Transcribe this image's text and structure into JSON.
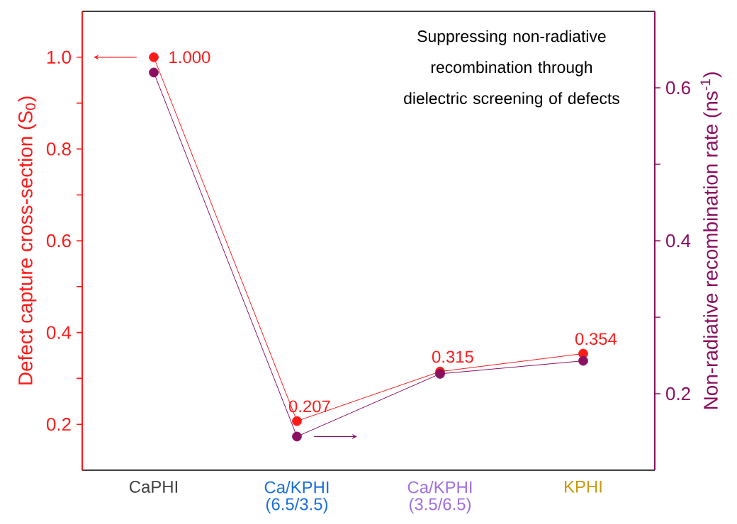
{
  "chart_data": {
    "type": "line",
    "categories": [
      "CaPHI",
      "Ca/KPHI (6.5/3.5)",
      "Ca/KPHI (3.5/6.5)",
      "KPHI"
    ],
    "ylabel": "Defect capture cross-section (S$_{0}$)",
    "y2label": "Non-radiative recombination rate (ns$^{-1}$)",
    "ylim": [
      0.1,
      1.1
    ],
    "yticks": [
      0.2,
      {
        "value": 0.3,
        "label": null
      },
      0.4,
      {
        "value": 0.5,
        "label": null
      },
      0.6,
      {
        "value": 0.7,
        "label": null
      },
      0.8,
      {
        "value": 0.9,
        "label": null
      },
      {
        "value": 1.0,
        "label": "1.0"
      }
    ],
    "y2lim": [
      0.1,
      0.7
    ],
    "y2ticks": [
      0.2,
      {
        "value": 0.3,
        "label": null
      },
      0.4,
      {
        "value": 0.5,
        "label": null
      },
      0.6
    ],
    "marker": "circle",
    "series": [
      {
        "color": "#ff1a1a",
        "values": [
          1.0,
          0.207,
          0.315,
          0.354
        ],
        "value_labels": [
          "1.000",
          "0.207",
          "0.315",
          "0.354"
        ]
      },
      {
        "color": "#8b1060",
        "axis": "y2",
        "values": [
          0.62,
          0.144,
          0.226,
          0.243
        ]
      }
    ],
    "annotations": [
      "Suppressing non-radiative recombination through dielectric screening of defects"
    ]
  }
}
